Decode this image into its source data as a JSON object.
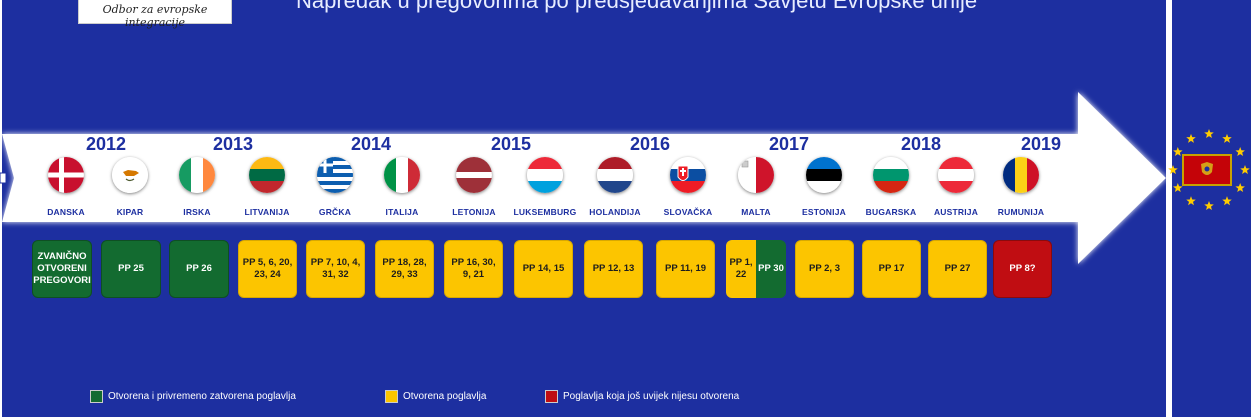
{
  "logo_text": "Odbor za evropske integracije",
  "title": "Napredak u pregovorima po predsjedavanjima Savjetu Evropske unije",
  "years": [
    "2012",
    "2013",
    "2014",
    "2015",
    "2016",
    "2017",
    "2018",
    "2019"
  ],
  "countries": [
    {
      "name": "DANSKA",
      "flag": "denmark"
    },
    {
      "name": "KIPAR",
      "flag": "cyprus"
    },
    {
      "name": "IRSKA",
      "flag": "ireland"
    },
    {
      "name": "LITVANIJA",
      "flag": "lithuania"
    },
    {
      "name": "GRČKA",
      "flag": "greece"
    },
    {
      "name": "ITALIJA",
      "flag": "italy"
    },
    {
      "name": "LETONIJA",
      "flag": "latvia"
    },
    {
      "name": "LUKSEMBURG",
      "flag": "luxembourg"
    },
    {
      "name": "HOLANDIJA",
      "flag": "netherlands"
    },
    {
      "name": "SLOVAČKA",
      "flag": "slovakia"
    },
    {
      "name": "MALTA",
      "flag": "malta"
    },
    {
      "name": "ESTONIJA",
      "flag": "estonia"
    },
    {
      "name": "BUGARSKA",
      "flag": "bulgaria"
    },
    {
      "name": "AUSTRIJA",
      "flag": "austria"
    },
    {
      "name": "RUMUNIJA",
      "flag": "romania"
    }
  ],
  "chapters": [
    {
      "text": "ZVANIČNO OTVORENI PREGOVORI",
      "status": "green"
    },
    {
      "text": "PP 25",
      "status": "green"
    },
    {
      "text": "PP 26",
      "status": "green"
    },
    {
      "text": "PP 5, 6, 20, 23, 24",
      "status": "yellow"
    },
    {
      "text": "PP 7, 10, 4, 31, 32",
      "status": "yellow"
    },
    {
      "text": "PP 18, 28, 29, 33",
      "status": "yellow"
    },
    {
      "text": "PP 16, 30, 9, 21",
      "status": "yellow"
    },
    {
      "text": "PP 14, 15",
      "status": "yellow"
    },
    {
      "text": "PP 12, 13",
      "status": "yellow"
    },
    {
      "text": "PP 11, 19",
      "status": "yellow"
    },
    {
      "text_left": "PP 1, 22",
      "text_right": "PP 30",
      "status": "split"
    },
    {
      "text": "PP 2, 3",
      "status": "yellow"
    },
    {
      "text": "PP 17",
      "status": "yellow"
    },
    {
      "text": "PP 27",
      "status": "yellow"
    },
    {
      "text": "PP 8?",
      "status": "red"
    }
  ],
  "legend": [
    {
      "label": "Otvorena i privremeno zatvorena poglavlja",
      "color": "#136b30"
    },
    {
      "label": "Otvorena poglavlja",
      "color": "#fcc500"
    },
    {
      "label": "Poglavlja koja još uvijek nijesu otvorena",
      "color": "#c00d12"
    }
  ],
  "colors": {
    "background": "#1d2fa0",
    "green": "#136b30",
    "yellow": "#fcc500",
    "red": "#c00d12"
  },
  "end_emblem": "montenegro-flag-in-eu-stars"
}
